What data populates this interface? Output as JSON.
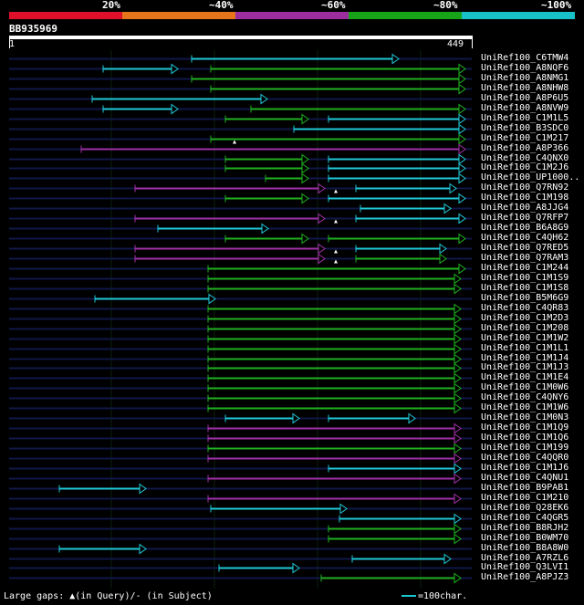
{
  "query": {
    "id": "BB935969",
    "start": "1",
    "end": "449",
    "length": 449
  },
  "legend": {
    "labels": [
      "20%",
      "~40%",
      "~60%",
      "~80%",
      "~100%"
    ],
    "colors": [
      "#e0102a",
      "#e8741c",
      "#9c2ea0",
      "#18a418",
      "#18c0c8"
    ]
  },
  "footer": {
    "gaps_text": "Large gaps: ▲(in Query)/- (in Subject)",
    "scale_text": "=100char."
  },
  "hits": [
    {
      "name": "UniRef100_C6TMW4",
      "segs": [
        [
          210,
          437,
          "c"
        ]
      ]
    },
    {
      "name": "UniRef100_A8NQF6",
      "segs": [
        [
          113,
          195,
          "c"
        ],
        [
          231,
          510,
          "g"
        ]
      ]
    },
    {
      "name": "UniRef100_A8NMG1",
      "segs": [
        [
          210,
          510,
          "g"
        ]
      ]
    },
    {
      "name": "UniRef100_A8NHW8",
      "segs": [
        [
          231,
          510,
          "g"
        ]
      ]
    },
    {
      "name": "UniRef100_A8P6U5",
      "segs": [
        [
          101,
          293,
          "c"
        ]
      ]
    },
    {
      "name": "UniRef100_A8NVW9",
      "segs": [
        [
          113,
          195,
          "c"
        ],
        [
          275,
          510,
          "g"
        ]
      ]
    },
    {
      "name": "UniRef100_C1M1L5",
      "segs": [
        [
          247,
          338,
          "g"
        ],
        [
          360,
          510,
          "c"
        ]
      ]
    },
    {
      "name": "UniRef100_B3SDC0",
      "segs": [
        [
          322,
          510,
          "c"
        ]
      ]
    },
    {
      "name": "UniRef100_C1M217",
      "segs": [
        [
          231,
          510,
          "g"
        ]
      ],
      "marks": [
        257
      ]
    },
    {
      "name": "UniRef100_A8P366",
      "segs": [
        [
          89,
          510,
          "p"
        ]
      ]
    },
    {
      "name": "UniRef100_C4QNX0",
      "segs": [
        [
          247,
          338,
          "g"
        ],
        [
          360,
          510,
          "c"
        ]
      ]
    },
    {
      "name": "UniRef100_C1M2J6",
      "segs": [
        [
          247,
          338,
          "g"
        ],
        [
          360,
          510,
          "c"
        ]
      ]
    },
    {
      "name": "UniRef100_UP1000..",
      "segs": [
        [
          291,
          338,
          "g"
        ],
        [
          360,
          510,
          "c"
        ]
      ]
    },
    {
      "name": "UniRef100_Q7RN92",
      "segs": [
        [
          148,
          356,
          "p"
        ],
        [
          390,
          500,
          "c"
        ]
      ],
      "marks": [
        368
      ]
    },
    {
      "name": "UniRef100_C1M198",
      "segs": [
        [
          247,
          338,
          "g"
        ],
        [
          360,
          510,
          "c"
        ]
      ]
    },
    {
      "name": "UniRef100_A8JJG4",
      "segs": [
        [
          395,
          494,
          "c"
        ]
      ]
    },
    {
      "name": "UniRef100_Q7RFP7",
      "segs": [
        [
          148,
          356,
          "p"
        ],
        [
          390,
          510,
          "c"
        ]
      ],
      "marks": [
        368
      ]
    },
    {
      "name": "UniRef100_B6A8G9",
      "segs": [
        [
          173,
          294,
          "c"
        ]
      ]
    },
    {
      "name": "UniRef100_C4QH62",
      "segs": [
        [
          247,
          338,
          "g"
        ],
        [
          360,
          510,
          "g"
        ]
      ]
    },
    {
      "name": "UniRef100_Q7RED5",
      "segs": [
        [
          148,
          356,
          "p"
        ],
        [
          390,
          489,
          "c"
        ]
      ],
      "marks": [
        368
      ]
    },
    {
      "name": "UniRef100_Q7RAM3",
      "segs": [
        [
          148,
          356,
          "p"
        ],
        [
          390,
          489,
          "g"
        ]
      ],
      "marks": [
        368
      ]
    },
    {
      "name": "UniRef100_C1M244",
      "segs": [
        [
          228,
          510,
          "g"
        ]
      ]
    },
    {
      "name": "UniRef100_C1M1S9",
      "segs": [
        [
          228,
          505,
          "g"
        ]
      ]
    },
    {
      "name": "UniRef100_C1M1S8",
      "segs": [
        [
          228,
          505,
          "g"
        ]
      ]
    },
    {
      "name": "UniRef100_B5M6G9",
      "segs": [
        [
          104,
          236,
          "c"
        ]
      ]
    },
    {
      "name": "UniRef100_C4QR83",
      "segs": [
        [
          228,
          505,
          "g"
        ]
      ]
    },
    {
      "name": "UniRef100_C1M2D3",
      "segs": [
        [
          228,
          505,
          "g"
        ]
      ]
    },
    {
      "name": "UniRef100_C1M208",
      "segs": [
        [
          228,
          505,
          "g"
        ]
      ]
    },
    {
      "name": "UniRef100_C1M1W2",
      "segs": [
        [
          228,
          505,
          "g"
        ]
      ]
    },
    {
      "name": "UniRef100_C1M1L1",
      "segs": [
        [
          228,
          505,
          "g"
        ]
      ]
    },
    {
      "name": "UniRef100_C1M1J4",
      "segs": [
        [
          228,
          505,
          "g"
        ]
      ]
    },
    {
      "name": "UniRef100_C1M1J3",
      "segs": [
        [
          228,
          505,
          "g"
        ]
      ]
    },
    {
      "name": "UniRef100_C1M1E4",
      "segs": [
        [
          228,
          505,
          "g"
        ]
      ]
    },
    {
      "name": "UniRef100_C1M0W6",
      "segs": [
        [
          228,
          505,
          "g"
        ]
      ]
    },
    {
      "name": "UniRef100_C4QNY6",
      "segs": [
        [
          228,
          505,
          "g"
        ]
      ]
    },
    {
      "name": "UniRef100_C1M1W6",
      "segs": [
        [
          228,
          505,
          "g"
        ]
      ]
    },
    {
      "name": "UniRef100_C1M0N3",
      "segs": [
        [
          247,
          328,
          "c"
        ],
        [
          360,
          455,
          "c"
        ]
      ]
    },
    {
      "name": "UniRef100_C1M1Q9",
      "segs": [
        [
          228,
          505,
          "p"
        ]
      ]
    },
    {
      "name": "UniRef100_C1M1Q6",
      "segs": [
        [
          228,
          505,
          "p"
        ]
      ]
    },
    {
      "name": "UniRef100_C1M199",
      "segs": [
        [
          228,
          505,
          "g"
        ]
      ]
    },
    {
      "name": "UniRef100_C4QQR0",
      "segs": [
        [
          228,
          505,
          "p"
        ]
      ]
    },
    {
      "name": "UniRef100_C1M1J6",
      "segs": [
        [
          360,
          505,
          "c"
        ]
      ]
    },
    {
      "name": "UniRef100_C4QNU1",
      "segs": [
        [
          228,
          505,
          "p"
        ]
      ]
    },
    {
      "name": "UniRef100_B9PAB1",
      "segs": [
        [
          65,
          160,
          "c"
        ]
      ]
    },
    {
      "name": "UniRef100_C1M210",
      "segs": [
        [
          228,
          505,
          "p"
        ]
      ]
    },
    {
      "name": "UniRef100_Q28EK6",
      "segs": [
        [
          231,
          380,
          "c"
        ]
      ]
    },
    {
      "name": "UniRef100_C4QGR5",
      "segs": [
        [
          372,
          505,
          "c"
        ]
      ]
    },
    {
      "name": "UniRef100_B8RJH2",
      "segs": [
        [
          360,
          505,
          "g"
        ]
      ]
    },
    {
      "name": "UniRef100_B0WM70",
      "segs": [
        [
          360,
          505,
          "g"
        ]
      ]
    },
    {
      "name": "UniRef100_B8A8W0",
      "segs": [
        [
          65,
          160,
          "c"
        ]
      ]
    },
    {
      "name": "UniRef100_A7RZL6",
      "segs": [
        [
          386,
          494,
          "c"
        ]
      ]
    },
    {
      "name": "UniRef100_Q3LVI1",
      "segs": [
        [
          240,
          328,
          "c"
        ]
      ]
    },
    {
      "name": "UniRef100_A8PJZ3",
      "segs": [
        [
          352,
          505,
          "g"
        ]
      ]
    }
  ]
}
